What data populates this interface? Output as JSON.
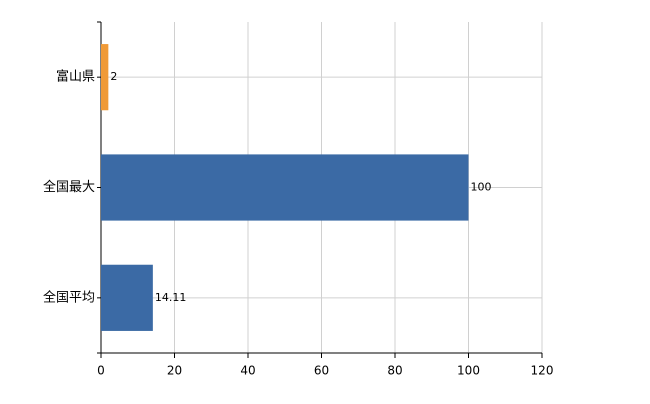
{
  "chart_data": {
    "type": "hbar",
    "categories": [
      "富山県",
      "全国最大",
      "全国平均"
    ],
    "values": [
      2,
      100,
      14.11
    ],
    "colors": [
      "#f09a36",
      "#3b6aa5",
      "#3b6aa5"
    ],
    "xlim": [
      0,
      120
    ],
    "xticks": [
      0,
      20,
      40,
      60,
      80,
      100,
      120
    ],
    "grid": true
  }
}
